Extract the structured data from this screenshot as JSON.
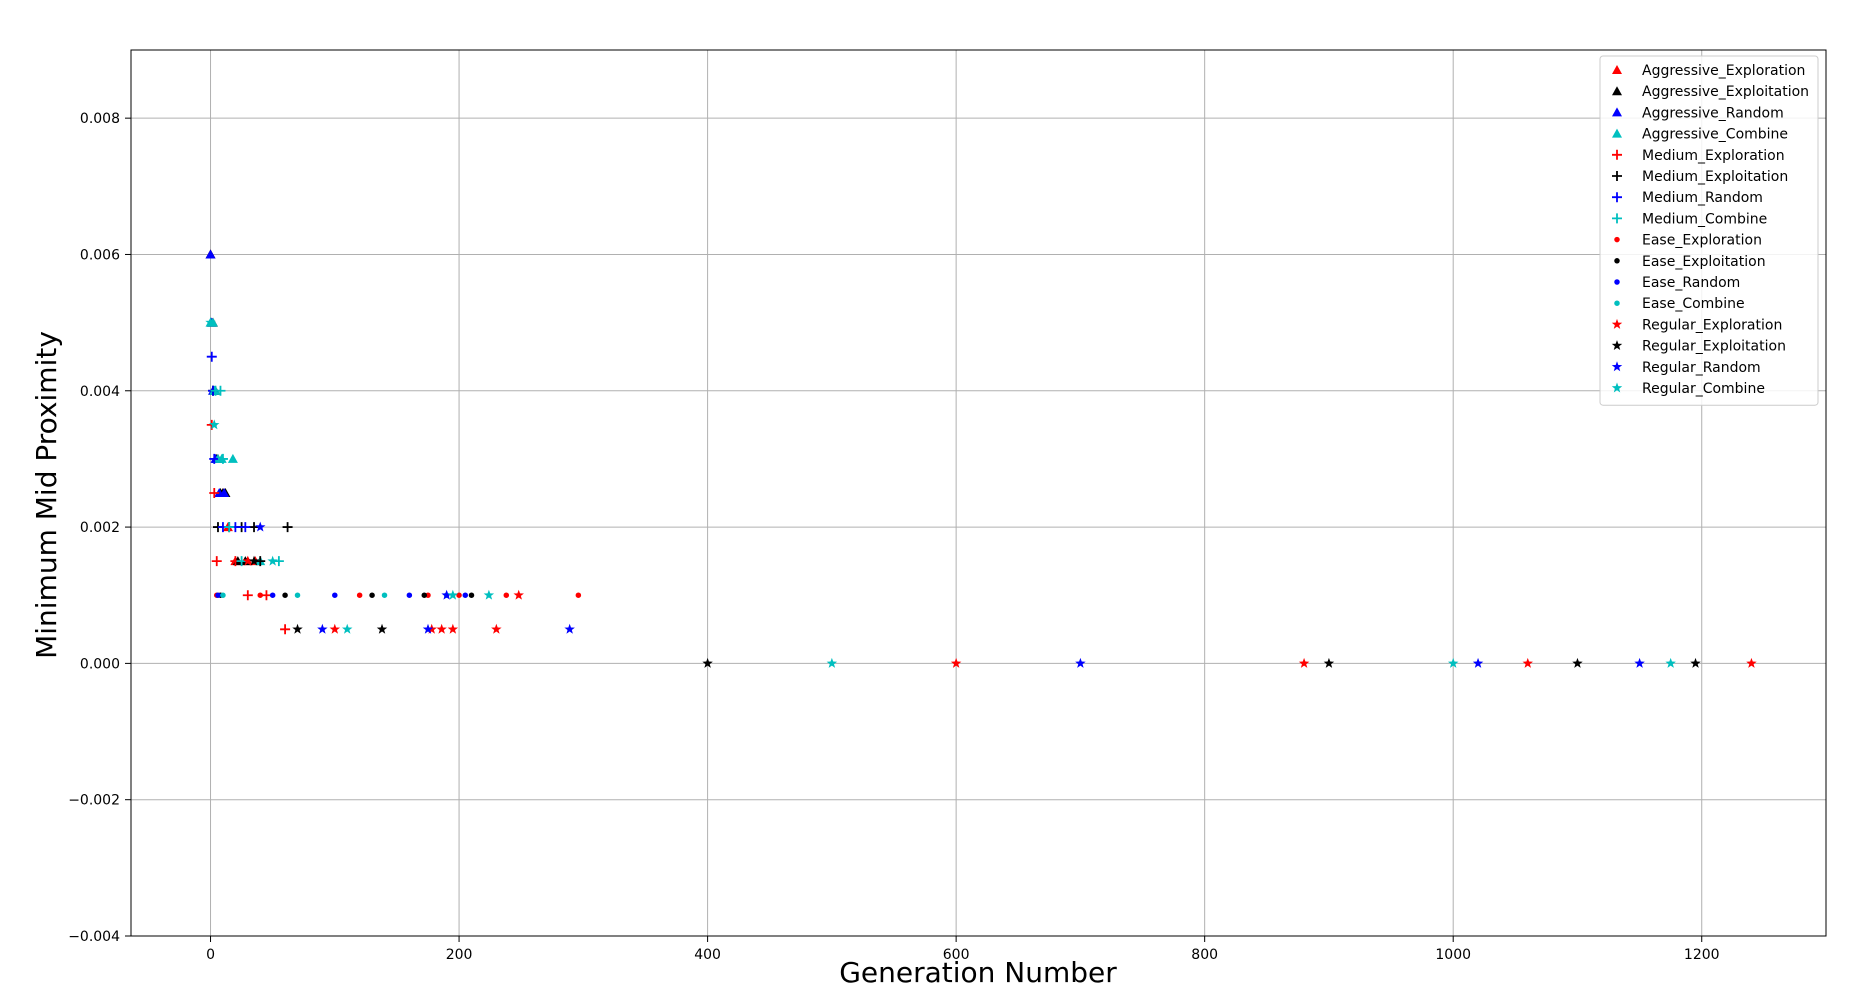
{
  "chart_data": {
    "type": "scatter",
    "title": "",
    "xlabel": "Generation Number",
    "ylabel": "Minimum Mid Proximity",
    "xlim": [
      -64,
      1300
    ],
    "ylim": [
      -0.004,
      0.009
    ],
    "xticks": [
      0,
      200,
      400,
      600,
      800,
      1000,
      1200
    ],
    "xtick_labels": [
      "0",
      "200",
      "400",
      "600",
      "800",
      "1000",
      "1200"
    ],
    "yticks": [
      -0.004,
      -0.002,
      0.0,
      0.002,
      0.004,
      0.006,
      0.008
    ],
    "ytick_labels": [
      "−0.004",
      "−0.002",
      "0.000",
      "0.002",
      "0.004",
      "0.006",
      "0.008"
    ],
    "grid": true,
    "legend_position": "top-right",
    "series": [
      {
        "name": "Aggressive_Exploration",
        "marker": "triangle",
        "color": "#ff0000",
        "x": [
          0,
          2,
          4,
          6,
          10,
          14,
          20,
          30,
          36
        ],
        "y": [
          0.006,
          0.005,
          0.004,
          0.003,
          0.0025,
          0.002,
          0.0015,
          0.0015,
          0.0015
        ]
      },
      {
        "name": "Aggressive_Exploitation",
        "marker": "triangle",
        "color": "#000000",
        "x": [
          0,
          1,
          3,
          5,
          8,
          10,
          12,
          22,
          28
        ],
        "y": [
          0.006,
          0.005,
          0.004,
          0.003,
          0.0025,
          0.0025,
          0.0025,
          0.0015,
          0.0015
        ]
      },
      {
        "name": "Aggressive_Random",
        "marker": "triangle",
        "color": "#0000ff",
        "x": [
          0,
          1,
          2,
          4,
          7,
          11
        ],
        "y": [
          0.006,
          0.005,
          0.004,
          0.003,
          0.0025,
          0.0025
        ]
      },
      {
        "name": "Aggressive_Combine",
        "marker": "triangle",
        "color": "#00bfbf",
        "x": [
          0,
          2,
          3,
          4,
          6,
          9,
          18,
          40
        ],
        "y": [
          0.005,
          0.005,
          0.004,
          0.004,
          0.003,
          0.003,
          0.003,
          0.0015
        ]
      },
      {
        "name": "Medium_Exploration",
        "marker": "plus",
        "color": "#ff0000",
        "x": [
          1,
          3,
          5,
          20,
          30,
          45,
          60
        ],
        "y": [
          0.0035,
          0.0025,
          0.0015,
          0.0015,
          0.001,
          0.001,
          0.0005
        ]
      },
      {
        "name": "Medium_Exploitation",
        "marker": "plus",
        "color": "#000000",
        "x": [
          2,
          6,
          15,
          25,
          35,
          62,
          40
        ],
        "y": [
          0.004,
          0.002,
          0.002,
          0.002,
          0.002,
          0.002,
          0.0015
        ]
      },
      {
        "name": "Medium_Random",
        "marker": "plus",
        "color": "#0000ff",
        "x": [
          1,
          2,
          3,
          10,
          20,
          28
        ],
        "y": [
          0.0045,
          0.004,
          0.003,
          0.002,
          0.002,
          0.002
        ]
      },
      {
        "name": "Medium_Combine",
        "marker": "plus",
        "color": "#00bfbf",
        "x": [
          4,
          8,
          10,
          15,
          25,
          55
        ],
        "y": [
          0.004,
          0.004,
          0.003,
          0.002,
          0.0015,
          0.0015
        ]
      },
      {
        "name": "Ease_Exploration",
        "marker": "dot",
        "color": "#ff0000",
        "x": [
          5,
          40,
          120,
          175,
          200,
          238,
          296
        ],
        "y": [
          0.001,
          0.001,
          0.001,
          0.001,
          0.001,
          0.001,
          0.001
        ]
      },
      {
        "name": "Ease_Exploitation",
        "marker": "dot",
        "color": "#000000",
        "x": [
          8,
          60,
          130,
          172,
          210
        ],
        "y": [
          0.001,
          0.001,
          0.001,
          0.001,
          0.001
        ]
      },
      {
        "name": "Ease_Random",
        "marker": "dot",
        "color": "#0000ff",
        "x": [
          6,
          50,
          100,
          160,
          205
        ],
        "y": [
          0.001,
          0.001,
          0.001,
          0.001,
          0.001
        ]
      },
      {
        "name": "Ease_Combine",
        "marker": "dot",
        "color": "#00bfbf",
        "x": [
          10,
          70,
          140,
          190
        ],
        "y": [
          0.001,
          0.001,
          0.001,
          0.001
        ]
      },
      {
        "name": "Regular_Exploration",
        "marker": "star",
        "color": "#ff0000",
        "x": [
          30,
          100,
          178,
          186,
          195,
          230,
          248,
          600,
          880,
          1060,
          1240
        ],
        "y": [
          0.0015,
          0.0005,
          0.0005,
          0.0005,
          0.0005,
          0.0005,
          0.001,
          0.0,
          0.0,
          0.0,
          0.0
        ]
      },
      {
        "name": "Regular_Exploitation",
        "marker": "star",
        "color": "#000000",
        "x": [
          35,
          70,
          138,
          400,
          900,
          1100,
          1195
        ],
        "y": [
          0.0015,
          0.0005,
          0.0005,
          0.0,
          0.0,
          0.0,
          0.0
        ]
      },
      {
        "name": "Regular_Random",
        "marker": "star",
        "color": "#0000ff",
        "x": [
          40,
          90,
          175,
          190,
          289,
          700,
          1020,
          1150
        ],
        "y": [
          0.002,
          0.0005,
          0.0005,
          0.001,
          0.0005,
          0.0,
          0.0,
          0.0
        ]
      },
      {
        "name": "Regular_Combine",
        "marker": "star",
        "color": "#00bfbf",
        "x": [
          0,
          3,
          50,
          110,
          195,
          224,
          500,
          1000,
          1175
        ],
        "y": [
          0.005,
          0.0035,
          0.0015,
          0.0005,
          0.001,
          0.001,
          0.0,
          0.0,
          0.0
        ]
      }
    ]
  }
}
